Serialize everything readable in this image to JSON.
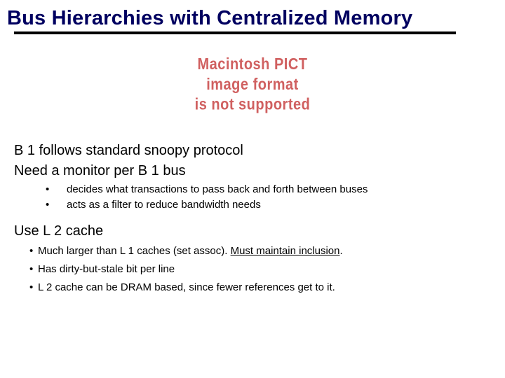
{
  "title": "Bus Hierarchies with Centralized Memory",
  "title_color": "#000060",
  "underline_color": "#000000",
  "underline_width": 630,
  "placeholder": {
    "line1": "Macintosh PICT",
    "line2": "image format",
    "line3": "is not supported",
    "color": "#d06060",
    "fontsize": 20
  },
  "body": {
    "line1": "B 1 follows standard snoopy protocol",
    "line2": "Need a monitor per B 1 bus",
    "sub1": "decides what transactions to pass back and forth between buses",
    "sub2": "acts as a filter to reduce bandwidth needs"
  },
  "section": {
    "heading": "Use L 2 cache",
    "b1_pre": "Much larger than L 1 caches (set assoc).  ",
    "b1_under": "Must maintain inclusion",
    "b1_post": ".",
    "b2": "Has dirty-but-stale bit per line",
    "b3": "L 2 cache can be DRAM based, since fewer references get to it."
  },
  "bullet_char": "•",
  "body_fontsize": 20,
  "sub_fontsize": 15,
  "background_color": "#ffffff"
}
